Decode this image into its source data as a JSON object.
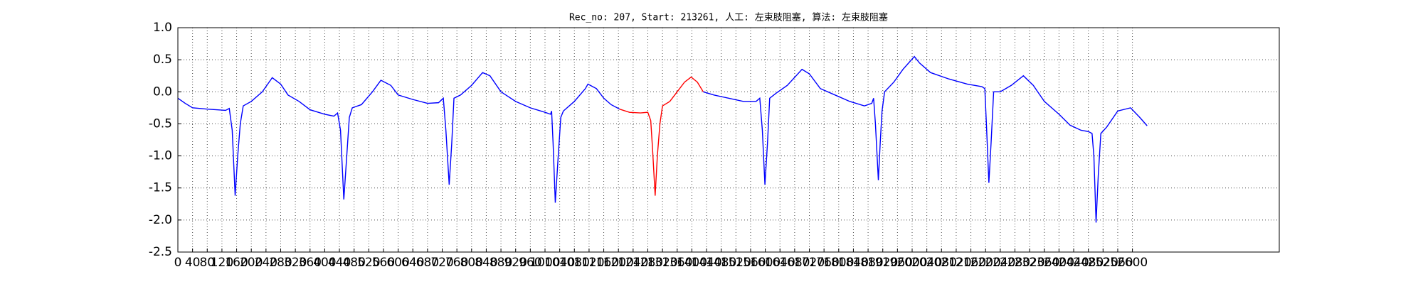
{
  "chart_data": {
    "type": "line",
    "title": "Rec_no: 207, Start: 213261, 人工: 左束肢阻塞, 算法: 左束肢阻塞",
    "xlim": [
      0,
      3000
    ],
    "xticks": [
      0,
      40,
      80,
      120,
      160,
      200,
      240,
      280,
      320,
      360,
      400,
      440,
      480,
      520,
      560,
      600,
      640,
      680,
      720,
      760,
      800,
      840,
      880,
      920,
      960,
      1000,
      1040,
      1080,
      1120,
      1160,
      1200,
      1240,
      1280,
      1320,
      1360,
      1400,
      1440,
      1480,
      1520,
      1560,
      1600,
      1640,
      1680,
      1720,
      1760,
      1800,
      1840,
      1880,
      1920,
      1960,
      2000,
      2040,
      2080,
      2120,
      2160,
      2200,
      2240,
      2280,
      2320,
      2360,
      2400,
      2440,
      2480,
      2520,
      2560,
      2600
    ],
    "ylim": [
      -2.5,
      1.0
    ],
    "yticks": [
      -2.5,
      {
        "value": -2.0,
        "label": "-2.0"
      },
      -1.5,
      {
        "value": -1.0,
        "label": "-1.0"
      },
      -0.5,
      {
        "value": 0,
        "label": "0.0"
      },
      0.5,
      {
        "value": 1.0,
        "label": "1.0"
      }
    ],
    "grid": true,
    "series": [
      {
        "color": "#0000ff",
        "x": [
          0,
          20,
          40,
          80,
          130,
          140,
          148,
          156,
          163,
          170,
          178,
          200,
          230,
          257,
          280,
          300,
          330,
          360,
          400,
          425,
          435,
          443,
          452,
          460,
          467,
          475,
          500,
          530,
          553,
          580,
          600,
          640,
          680,
          710,
          723,
          730,
          739,
          746,
          752,
          770,
          800,
          830,
          850,
          880,
          920,
          960,
          1000,
          1015,
          1018,
          1022,
          1028,
          1036,
          1043,
          1050,
          1080,
          1110,
          1117,
          1140,
          1160,
          1180,
          1203
        ],
        "values": [
          -0.1,
          -0.18,
          -0.25,
          -0.27,
          -0.29,
          -0.26,
          -0.6,
          -1.62,
          -1.0,
          -0.5,
          -0.22,
          -0.15,
          0.0,
          0.22,
          0.12,
          -0.05,
          -0.15,
          -0.28,
          -0.35,
          -0.38,
          -0.33,
          -0.6,
          -1.68,
          -1.0,
          -0.4,
          -0.25,
          -0.2,
          0.0,
          0.18,
          0.1,
          -0.05,
          -0.12,
          -0.18,
          -0.17,
          -0.1,
          -0.6,
          -1.45,
          -0.8,
          -0.1,
          -0.05,
          0.1,
          0.3,
          0.25,
          0.0,
          -0.15,
          -0.25,
          -0.32,
          -0.35,
          -0.3,
          -0.8,
          -1.73,
          -1.0,
          -0.4,
          -0.3,
          -0.15,
          0.05,
          0.12,
          0.05,
          -0.1,
          -0.2,
          -0.27
        ]
      },
      {
        "color": "#ff0000",
        "x": [
          1203,
          1230,
          1260,
          1280,
          1288,
          1293,
          1300,
          1306,
          1313,
          1320,
          1340,
          1360,
          1380,
          1398,
          1415,
          1431
        ],
        "values": [
          -0.27,
          -0.32,
          -0.33,
          -0.32,
          -0.45,
          -0.9,
          -1.62,
          -1.0,
          -0.5,
          -0.22,
          -0.15,
          0.0,
          0.15,
          0.23,
          0.15,
          0.0
        ]
      },
      {
        "color": "#0000ff",
        "x": [
          1431,
          1460,
          1500,
          1540,
          1575,
          1585,
          1592,
          1599,
          1606,
          1612,
          1630,
          1660,
          1700,
          1720,
          1750,
          1790,
          1830,
          1870,
          1890,
          1895,
          1900,
          1908,
          1913,
          1918,
          1925,
          1950,
          1975,
          2006,
          2020,
          2050,
          2100,
          2150,
          2190,
          2198,
          2203,
          2209,
          2215,
          2222,
          2240,
          2270,
          2303,
          2330,
          2360,
          2400,
          2430,
          2460,
          2480,
          2490,
          2495,
          2501,
          2507,
          2514,
          2530,
          2560,
          2595,
          2620,
          2640
        ],
        "values": [
          0.0,
          -0.05,
          -0.1,
          -0.15,
          -0.15,
          -0.1,
          -0.6,
          -1.45,
          -0.8,
          -0.1,
          -0.02,
          0.1,
          0.35,
          0.28,
          0.05,
          -0.05,
          -0.15,
          -0.22,
          -0.18,
          -0.1,
          -0.5,
          -1.38,
          -0.8,
          -0.3,
          0.0,
          0.15,
          0.35,
          0.55,
          0.45,
          0.3,
          0.2,
          0.12,
          0.08,
          0.05,
          -0.6,
          -1.42,
          -0.8,
          0.0,
          0.0,
          0.1,
          0.25,
          0.1,
          -0.15,
          -0.35,
          -0.52,
          -0.6,
          -0.62,
          -0.65,
          -1.0,
          -2.04,
          -1.3,
          -0.65,
          -0.55,
          -0.3,
          -0.25,
          -0.4,
          -0.53
        ]
      }
    ]
  }
}
